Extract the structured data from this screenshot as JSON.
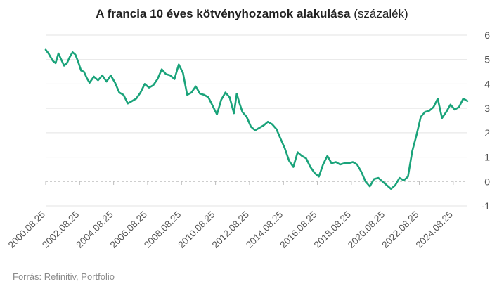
{
  "title": {
    "main": "A francia 10 éves kötvényhozamok alakulása",
    "unit": "(százalék)"
  },
  "source": "Forrás: Refinitiv, Portfolio",
  "colors": {
    "line": "#1aa37a",
    "grid": "#e3e3e3",
    "tick_text": "#555555",
    "zero_line": "#bdbdbd"
  },
  "chart_data": {
    "type": "line",
    "title": "A francia 10 éves kötvényhozamok alakulása (százalék)",
    "xlabel": "",
    "ylabel": "",
    "ylim": [
      -1,
      6
    ],
    "yticks": [
      6,
      5,
      4,
      3,
      2,
      1,
      0,
      -1
    ],
    "y_axis_side": "right",
    "grid": true,
    "xticks": [
      "2000.08.25",
      "2002.08.25",
      "2004.08.25",
      "2006.08.25",
      "2008.08.25",
      "2010.08.25",
      "2012.08.25",
      "2014.08.25",
      "2016.08.25",
      "2018.08.25",
      "2020.08.25",
      "2022.08.25",
      "2024.08.25"
    ],
    "series": [
      {
        "x": [
          "2000.08.25",
          "2000.10.25",
          "2001.01.25",
          "2001.03.25",
          "2001.05.25",
          "2001.07.25",
          "2001.09.25",
          "2001.11.25",
          "2002.01.25",
          "2002.03.25",
          "2002.05.25",
          "2002.07.25",
          "2002.09.25",
          "2002.11.25",
          "2003.01.25",
          "2003.03.25",
          "2003.06.25",
          "2003.09.25",
          "2003.12.25",
          "2004.03.25",
          "2004.06.25",
          "2004.09.25",
          "2004.12.25",
          "2005.03.25",
          "2005.06.25",
          "2005.09.25",
          "2005.12.25",
          "2006.03.25",
          "2006.06.25",
          "2006.09.25",
          "2006.12.25",
          "2007.03.25",
          "2007.06.25",
          "2007.09.25",
          "2007.12.25",
          "2008.03.25",
          "2008.06.25",
          "2008.09.25",
          "2008.12.25",
          "2009.03.25",
          "2009.06.25",
          "2009.09.25",
          "2009.12.25",
          "2010.03.25",
          "2010.06.25",
          "2010.09.25",
          "2010.12.25",
          "2011.03.25",
          "2011.06.25",
          "2011.09.25",
          "2011.11.25",
          "2012.01.25",
          "2012.03.25",
          "2012.06.25",
          "2012.09.25",
          "2012.12.25",
          "2013.03.25",
          "2013.06.25",
          "2013.09.25",
          "2013.12.25",
          "2014.03.25",
          "2014.06.25",
          "2014.09.25",
          "2014.12.25",
          "2015.03.25",
          "2015.06.25",
          "2015.09.25",
          "2015.12.25",
          "2016.03.25",
          "2016.06.25",
          "2016.09.25",
          "2016.12.25",
          "2017.03.25",
          "2017.06.25",
          "2017.09.25",
          "2017.12.25",
          "2018.03.25",
          "2018.06.25",
          "2018.09.25",
          "2018.12.25",
          "2019.03.25",
          "2019.06.25",
          "2019.09.25",
          "2019.12.25",
          "2020.03.25",
          "2020.06.25",
          "2020.09.25",
          "2020.12.25",
          "2021.03.25",
          "2021.06.25",
          "2021.09.25",
          "2021.12.25",
          "2022.03.25",
          "2022.06.25",
          "2022.09.25",
          "2022.12.25",
          "2023.03.25",
          "2023.06.25",
          "2023.09.25",
          "2023.12.25",
          "2024.03.25",
          "2024.06.25",
          "2024.09.25",
          "2024.12.25",
          "2025.03.25",
          "2025.06.25"
        ],
        "values": [
          5.4,
          5.25,
          4.95,
          4.85,
          5.25,
          5.0,
          4.75,
          4.85,
          5.1,
          5.3,
          5.2,
          4.9,
          4.55,
          4.5,
          4.25,
          4.05,
          4.3,
          4.15,
          4.35,
          4.1,
          4.35,
          4.05,
          3.65,
          3.55,
          3.2,
          3.3,
          3.4,
          3.65,
          4.0,
          3.85,
          3.95,
          4.2,
          4.6,
          4.4,
          4.35,
          4.2,
          4.8,
          4.45,
          3.55,
          3.65,
          3.9,
          3.6,
          3.55,
          3.45,
          3.1,
          2.75,
          3.35,
          3.65,
          3.45,
          2.8,
          3.6,
          3.2,
          2.85,
          2.65,
          2.25,
          2.1,
          2.2,
          2.3,
          2.45,
          2.35,
          2.15,
          1.75,
          1.35,
          0.85,
          0.6,
          1.2,
          1.05,
          0.95,
          0.6,
          0.35,
          0.2,
          0.7,
          1.05,
          0.75,
          0.8,
          0.7,
          0.75,
          0.75,
          0.8,
          0.7,
          0.4,
          0.0,
          -0.2,
          0.1,
          0.15,
          0.0,
          -0.15,
          -0.3,
          -0.15,
          0.15,
          0.05,
          0.2,
          1.25,
          1.9,
          2.65,
          2.85,
          2.9,
          3.05,
          3.4,
          2.6,
          2.85,
          3.15,
          2.95,
          3.05,
          3.4,
          3.3
        ]
      }
    ]
  }
}
